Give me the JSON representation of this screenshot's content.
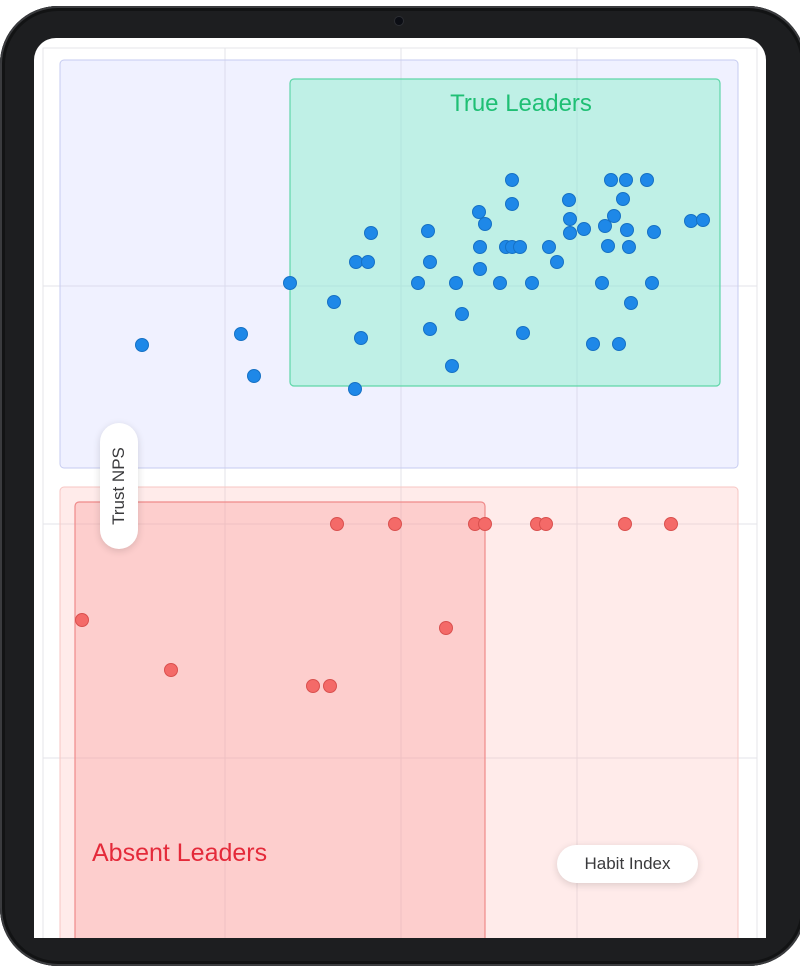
{
  "chart_data": {
    "type": "scatter",
    "title": "",
    "xlabel": "Habit Index",
    "ylabel": "Trust NPS",
    "grid": true,
    "regions": [
      {
        "name": "True Leaders",
        "color": "#2ecc8f",
        "label_color": "#1fbf74"
      },
      {
        "name": "Absent Leaders",
        "color": "#f05a5a",
        "label_color": "#e42a3a"
      }
    ],
    "series": [
      {
        "color": "#1e88e8",
        "points": [
          [
            142,
            345
          ],
          [
            241,
            334
          ],
          [
            254,
            376
          ],
          [
            290,
            283
          ],
          [
            334,
            302
          ],
          [
            356,
            262
          ],
          [
            355,
            389
          ],
          [
            361,
            338
          ],
          [
            368,
            262
          ],
          [
            371,
            233
          ],
          [
            418,
            283
          ],
          [
            428,
            231
          ],
          [
            430,
            262
          ],
          [
            430,
            329
          ],
          [
            452,
            366
          ],
          [
            456,
            283
          ],
          [
            462,
            314
          ],
          [
            479,
            212
          ],
          [
            480,
            247
          ],
          [
            480,
            269
          ],
          [
            485,
            224
          ],
          [
            500,
            283
          ],
          [
            506,
            247
          ],
          [
            512,
            180
          ],
          [
            512,
            204
          ],
          [
            512,
            247
          ],
          [
            520,
            247
          ],
          [
            523,
            333
          ],
          [
            532,
            283
          ],
          [
            549,
            247
          ],
          [
            557,
            262
          ],
          [
            569,
            200
          ],
          [
            570,
            219
          ],
          [
            570,
            233
          ],
          [
            584,
            229
          ],
          [
            593,
            344
          ],
          [
            602,
            283
          ],
          [
            605,
            226
          ],
          [
            608,
            246
          ],
          [
            611,
            180
          ],
          [
            614,
            216
          ],
          [
            619,
            344
          ],
          [
            623,
            199
          ],
          [
            626,
            180
          ],
          [
            627,
            230
          ],
          [
            629,
            247
          ],
          [
            631,
            303
          ],
          [
            647,
            180
          ],
          [
            652,
            283
          ],
          [
            654,
            232
          ],
          [
            691,
            221
          ],
          [
            703,
            220
          ]
        ]
      },
      {
        "color": "#f46a68",
        "points": [
          [
            82,
            620
          ],
          [
            171,
            670
          ],
          [
            313,
            686
          ],
          [
            330,
            686
          ],
          [
            337,
            524
          ],
          [
            395,
            524
          ],
          [
            446,
            628
          ],
          [
            475,
            524
          ],
          [
            485,
            524
          ],
          [
            537,
            524
          ],
          [
            546,
            524
          ],
          [
            625,
            524
          ],
          [
            671,
            524
          ]
        ]
      }
    ]
  }
}
